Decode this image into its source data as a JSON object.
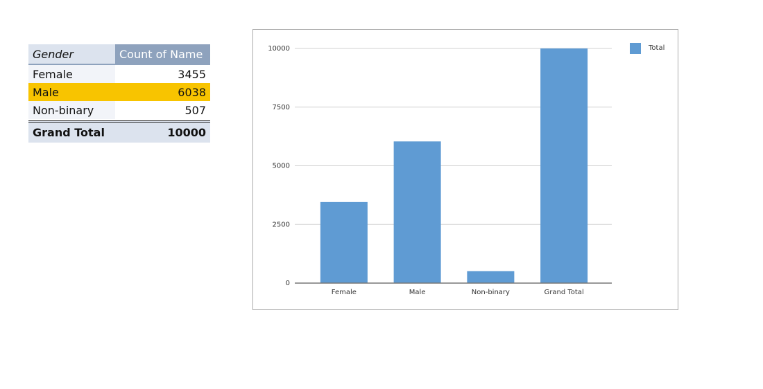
{
  "table": {
    "header": [
      "Gender",
      "Count of Name"
    ],
    "rows": [
      [
        "Female",
        3455
      ],
      [
        "Male",
        6038
      ],
      [
        "Non-binary",
        507
      ]
    ],
    "total": [
      "Grand Total",
      10000
    ]
  },
  "chart_data": {
    "type": "bar",
    "categories": [
      "Female",
      "Male",
      "Non-binary",
      "Grand Total"
    ],
    "series": [
      {
        "name": "Total",
        "color": "#5f9bd3",
        "values": [
          3455,
          6038,
          507,
          10000
        ]
      }
    ],
    "ylim": [
      0,
      10000
    ],
    "yticks": [
      0,
      2500,
      5000,
      7500,
      10000
    ],
    "grid": true,
    "legend": "top-right"
  }
}
